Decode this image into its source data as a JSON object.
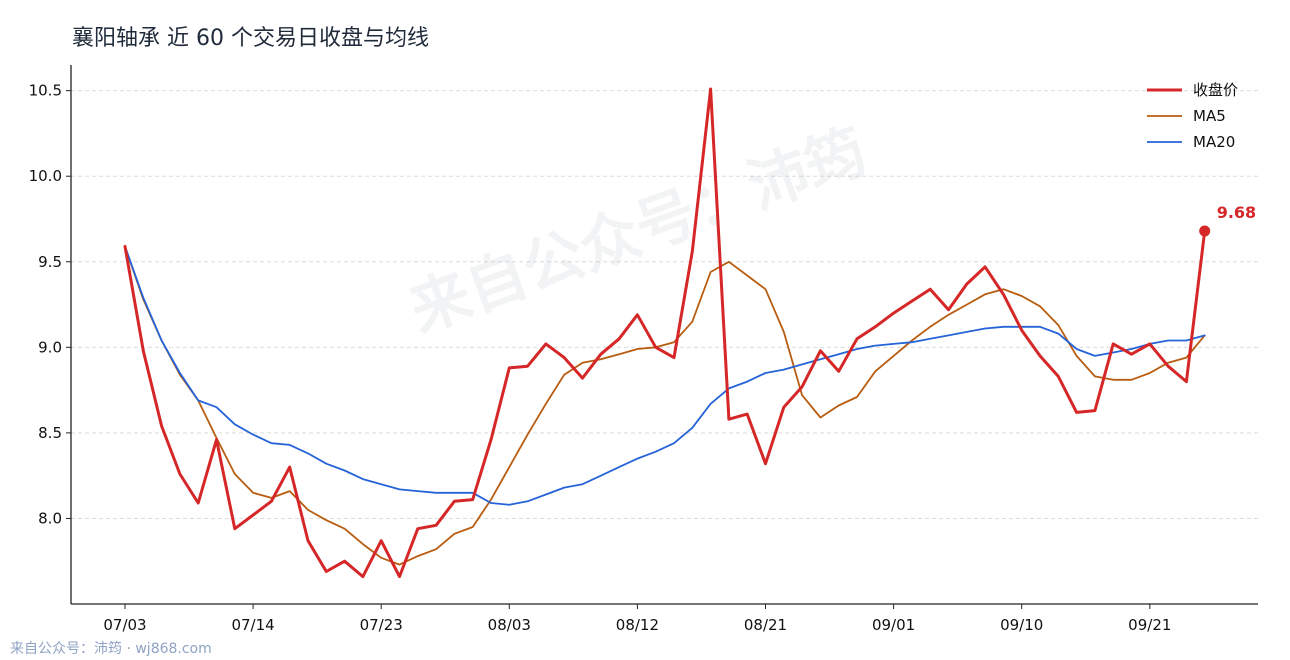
{
  "chart_data": {
    "type": "line",
    "title": "襄阳轴承 近 60 个交易日收盘与均线",
    "xlabel": "",
    "ylabel": "",
    "ylim": [
      7.5,
      10.65
    ],
    "yticks": [
      "8.0",
      "8.5",
      "9.0",
      "9.5",
      "10.0",
      "10.5"
    ],
    "xtick_labels": [
      "07/03",
      "07/14",
      "07/23",
      "08/03",
      "08/12",
      "08/21",
      "09/01",
      "09/10",
      "09/21"
    ],
    "xtick_indices": [
      0,
      7,
      14,
      21,
      28,
      35,
      42,
      49,
      56
    ],
    "grid": "horizontal dashed",
    "legend_position": "top-right",
    "series": [
      {
        "name": "收盘价",
        "color": "#d62728",
        "values": [
          9.59,
          8.98,
          8.54,
          8.26,
          8.09,
          8.46,
          7.94,
          8.02,
          8.1,
          8.3,
          7.87,
          7.69,
          7.75,
          7.66,
          7.87,
          7.66,
          7.94,
          7.96,
          8.1,
          8.11,
          8.46,
          8.88,
          8.89,
          9.02,
          8.94,
          8.82,
          8.96,
          9.05,
          9.19,
          9.0,
          8.94,
          9.56,
          10.51,
          8.58,
          8.61,
          8.32,
          8.65,
          8.77,
          8.98,
          8.86,
          9.05,
          9.12,
          9.2,
          9.27,
          9.34,
          9.22,
          9.37,
          9.47,
          9.31,
          9.1,
          8.95,
          8.83,
          8.62,
          8.63,
          9.02,
          8.96,
          9.02,
          8.89,
          8.8,
          9.68
        ]
      },
      {
        "name": "MA5",
        "color": "#b85c10",
        "values": [
          9.59,
          9.28,
          9.04,
          8.84,
          8.69,
          8.47,
          8.26,
          8.15,
          8.12,
          8.16,
          8.05,
          7.99,
          7.94,
          7.85,
          7.77,
          7.73,
          7.78,
          7.82,
          7.91,
          7.95,
          8.11,
          8.3,
          8.49,
          8.67,
          8.84,
          8.91,
          8.93,
          8.96,
          8.99,
          9.0,
          9.03,
          9.15,
          9.44,
          9.5,
          9.42,
          9.34,
          9.09,
          8.72,
          8.59,
          8.66,
          8.71,
          8.86,
          8.95,
          9.04,
          9.12,
          9.19,
          9.25,
          9.31,
          9.34,
          9.3,
          9.24,
          9.13,
          8.95,
          8.83,
          8.81,
          8.81,
          8.85,
          8.91,
          8.94,
          9.07
        ]
      },
      {
        "name": "MA20",
        "color": "#2563d9",
        "values": [
          9.59,
          9.29,
          9.04,
          8.85,
          8.69,
          8.65,
          8.55,
          8.49,
          8.44,
          8.43,
          8.38,
          8.32,
          8.28,
          8.23,
          8.2,
          8.17,
          8.16,
          8.15,
          8.15,
          8.15,
          8.09,
          8.08,
          8.1,
          8.14,
          8.18,
          8.2,
          8.25,
          8.3,
          8.35,
          8.39,
          8.44,
          8.53,
          8.67,
          8.76,
          8.8,
          8.85,
          8.87,
          8.9,
          8.93,
          8.96,
          8.99,
          9.01,
          9.02,
          9.03,
          9.05,
          9.07,
          9.09,
          9.11,
          9.12,
          9.12,
          9.12,
          9.08,
          8.99,
          8.95,
          8.97,
          8.99,
          9.02,
          9.04,
          9.04,
          9.07
        ]
      }
    ],
    "end_label": "9.68"
  },
  "watermark": "来自公众号：沛筠",
  "footer": "来自公众号：沛筠 · wj868.com"
}
